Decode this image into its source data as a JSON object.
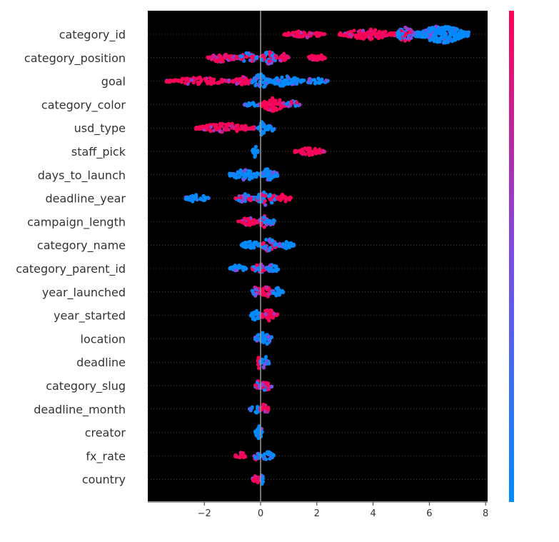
{
  "chart_data": {
    "type": "scatter",
    "subtype": "shap-beeswarm-summary",
    "title": "",
    "xlabel": "",
    "ylabel": "",
    "xlim": [
      -4,
      8
    ],
    "x_ticks": [
      {
        "value": -2,
        "label": "−2"
      },
      {
        "value": 0,
        "label": "0"
      },
      {
        "value": 2,
        "label": "2"
      },
      {
        "value": 4,
        "label": "4"
      },
      {
        "value": 6,
        "label": "6"
      },
      {
        "value": 8,
        "label": "8"
      }
    ],
    "grid": "dotted horizontal lines per feature",
    "colorbar": {
      "low_color": "#008bfb",
      "high_color": "#ff0052",
      "position": "right"
    },
    "background": "#000000",
    "features": [
      {
        "name": "category_id",
        "clusters": [
          [
            0.8,
            2.3,
            "h",
            0.9
          ],
          [
            2.8,
            4.8,
            "h",
            1.6
          ],
          [
            4.8,
            5.5,
            "m",
            2.5
          ],
          [
            5.5,
            7.4,
            "l",
            4.5
          ]
        ]
      },
      {
        "name": "category_position",
        "clusters": [
          [
            -1.9,
            -0.8,
            "h",
            1.4
          ],
          [
            -0.8,
            -0.1,
            "m",
            1.5
          ],
          [
            0.0,
            0.6,
            "m",
            2.2
          ],
          [
            0.6,
            1.0,
            "h",
            1.2
          ],
          [
            1.7,
            2.3,
            "h",
            1.3
          ]
        ]
      },
      {
        "name": "goal",
        "clusters": [
          [
            -3.4,
            -1.0,
            "h",
            1.0
          ],
          [
            -1.0,
            -0.3,
            "h",
            1.5
          ],
          [
            -0.3,
            0.3,
            "l",
            2.8
          ],
          [
            0.3,
            1.5,
            "l",
            1.8
          ],
          [
            1.5,
            2.4,
            "l",
            0.8
          ]
        ]
      },
      {
        "name": "category_color",
        "clusters": [
          [
            -0.6,
            0.0,
            "l",
            0.6
          ],
          [
            0.0,
            0.9,
            "h",
            2.3
          ],
          [
            0.9,
            1.4,
            "m",
            1.2
          ]
        ]
      },
      {
        "name": "usd_type",
        "clusters": [
          [
            -2.3,
            -0.2,
            "h",
            1.4
          ],
          [
            -0.1,
            0.2,
            "l",
            2.6
          ],
          [
            0.2,
            0.5,
            "l",
            1.0
          ]
        ]
      },
      {
        "name": "staff_pick",
        "clusters": [
          [
            -0.3,
            -0.1,
            "l",
            1.8
          ],
          [
            1.2,
            2.3,
            "h",
            1.1
          ]
        ]
      },
      {
        "name": "days_to_launch",
        "clusters": [
          [
            -1.1,
            0.0,
            "l",
            1.6
          ],
          [
            0.0,
            0.6,
            "l",
            2.4
          ]
        ]
      },
      {
        "name": "deadline_year",
        "clusters": [
          [
            -2.7,
            -1.8,
            "l",
            1.2
          ],
          [
            -0.9,
            -0.2,
            "m",
            1.4
          ],
          [
            -0.2,
            0.6,
            "m",
            2.4
          ],
          [
            0.6,
            1.1,
            "h",
            1.2
          ]
        ]
      },
      {
        "name": "campaign_length",
        "clusters": [
          [
            -0.8,
            -0.1,
            "h",
            1.1
          ],
          [
            -0.1,
            0.3,
            "m",
            2.0
          ],
          [
            0.3,
            0.5,
            "l",
            1.3
          ]
        ]
      },
      {
        "name": "category_name",
        "clusters": [
          [
            -0.7,
            0.0,
            "l",
            1.4
          ],
          [
            0.0,
            0.6,
            "m",
            2.2
          ],
          [
            0.6,
            1.2,
            "l",
            1.0
          ]
        ]
      },
      {
        "name": "category_parent_id",
        "clusters": [
          [
            -1.1,
            -0.5,
            "l",
            1.2
          ],
          [
            -0.3,
            0.2,
            "m",
            1.6
          ],
          [
            0.2,
            0.7,
            "l",
            1.2
          ]
        ]
      },
      {
        "name": "year_launched",
        "clusters": [
          [
            -0.3,
            0.0,
            "m",
            1.8
          ],
          [
            0.0,
            0.4,
            "h",
            1.8
          ],
          [
            0.4,
            0.8,
            "l",
            1.3
          ]
        ]
      },
      {
        "name": "year_started",
        "clusters": [
          [
            -0.4,
            0.0,
            "l",
            1.6
          ],
          [
            0.0,
            0.6,
            "h",
            2.0
          ]
        ]
      },
      {
        "name": "location",
        "clusters": [
          [
            -0.2,
            0.4,
            "l",
            2.4
          ]
        ]
      },
      {
        "name": "deadline",
        "clusters": [
          [
            -0.1,
            0.0,
            "h",
            2.2
          ],
          [
            0.0,
            0.3,
            "l",
            2.0
          ]
        ]
      },
      {
        "name": "category_slug",
        "clusters": [
          [
            -0.2,
            0.0,
            "m",
            1.6
          ],
          [
            0.0,
            0.4,
            "m",
            1.6
          ]
        ]
      },
      {
        "name": "deadline_month",
        "clusters": [
          [
            -0.4,
            0.0,
            "l",
            1.2
          ],
          [
            0.0,
            0.3,
            "h",
            1.8
          ]
        ]
      },
      {
        "name": "creator",
        "clusters": [
          [
            -0.2,
            0.1,
            "l",
            2.2
          ]
        ]
      },
      {
        "name": "fx_rate",
        "clusters": [
          [
            -0.9,
            -0.5,
            "h",
            1.0
          ],
          [
            -0.3,
            0.0,
            "m",
            1.2
          ],
          [
            0.0,
            0.5,
            "l",
            1.2
          ]
        ]
      },
      {
        "name": "country",
        "clusters": [
          [
            -0.3,
            0.0,
            "h",
            1.0
          ],
          [
            0.0,
            0.1,
            "l",
            1.6
          ]
        ]
      }
    ]
  }
}
